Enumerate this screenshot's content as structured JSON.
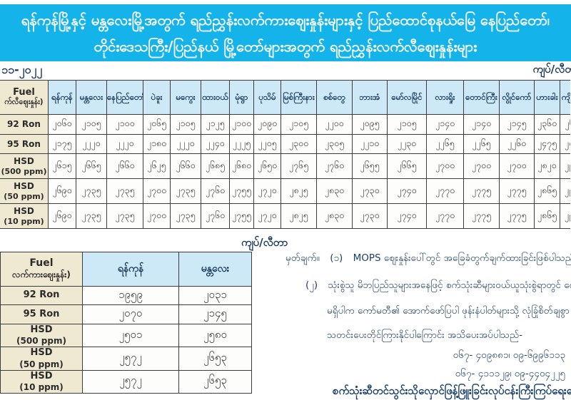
{
  "banner": {
    "line1": "ရန်ကုန်မြို့နှင့် မန္တလေးမြို့အတွက် ရည်ညွှန်းလက်ကားဈေးနှုန်းများနှင့် ပြည်ထောင်စုနယ်မြေ နေပြည်တော်၊",
    "line2": "တိုင်းဒေသကြီး/ပြည်နယ် မြို့တော်များအတွက် ရည်ညွှန်းလက်လီဈေးနှုန်းများ"
  },
  "meta": {
    "date": "၁၁-၂၀၂၂",
    "unit": "ကျပ်/လီတာ"
  },
  "retail_table": {
    "header": {
      "fuel_line1": "Fuel",
      "fuel_line2": "က်လီဈေးနှုန်း)"
    },
    "columns": [
      "ရန်ကုန်",
      "မန္တလေး",
      "နေပြည်တော်",
      "ပဲခူး",
      "မကွေး",
      "ထားဝယ်",
      "မုံရွာ",
      "ပုသိမ်",
      "မြစ်ကြီးနား",
      "စစ်တွေ",
      "ဘားအံ",
      "မော်လမြိုင်",
      "လားရှိုး",
      "တောင်ကြီး",
      "လွိုင်ကော်",
      "ဟားခါး",
      "ကျိုင်းတုံ"
    ],
    "rows": [
      {
        "label": "92 Ron",
        "sub": "",
        "values": [
          "၂၀၆၀",
          "၂၁၀၅",
          "၂၁၀၀",
          "၂၀၆၅",
          "၂၁၀၅",
          "၂၁၂၅",
          "၂၁၀၀",
          "၂၀၉၀",
          "၂၁၀၅",
          "၂၂၀၀",
          "၂၀၉၅",
          "၂၁၀၅",
          "၂၁၄၀",
          "၂၁၄၀",
          "၂၁၄၅",
          "၂၃၆၀",
          "၂၆၂၀"
        ]
      },
      {
        "label": "95 Ron",
        "sub": "",
        "values": [
          "၂၁၇၅",
          "၂၂၂၀",
          "၂၂၂၀",
          "၂၁၈၀",
          "၂၂၂၀",
          "၂၂၄၀",
          "၂၂၂၅",
          "၂၂၀၅",
          "၂၃၀၀",
          "၂၃၀၅",
          "၂၂၁၀",
          "၂၂၃၀",
          "၂၂၆၅",
          "၂၂၆၅",
          "၂၂၆၀",
          "၂၄၇၅",
          "၂၄၀၀"
        ]
      },
      {
        "label": "HSD",
        "sub": "(500 ppm)",
        "values": [
          "၂၆၁၅",
          "၂၆၆၅",
          "၂၆၆၀",
          "၂၆၂၅",
          "၂၆၆၀",
          "၂၆၈၅",
          "၂၆၈၀",
          "၂၆၅၀",
          "၂၇၆၅",
          "၂၇၆၀",
          "၂၆၅၅",
          "၂၆၆၅",
          "၂၇၀၀",
          "၂၇၀၀",
          "၂၇၀၀",
          "၂၈၂၀",
          "၂၉၆၅"
        ]
      },
      {
        "label": "HSD",
        "sub": "(50 ppm)",
        "values": [
          "၂၆၉၀",
          "၂၇၃၅",
          "၂၇၃၅",
          "၂၇၀၀",
          "၂၇၃၅",
          "၂၇၆၀",
          "၂၇၅၅",
          "၂၇၂၀",
          "၂၈၂၅",
          "၂၈၃၀",
          "၂၇၃၀",
          "၂၇၄၀",
          "၂၇၇၀",
          "၂၇၇၅",
          "၂၇၇၅",
          "၂၈၆၅",
          "၂၉၆၅"
        ]
      },
      {
        "label": "HSD",
        "sub": "(10 ppm)",
        "values": [
          "၂၆၉၀",
          "၂၇၃၅",
          "၂၇၃၅",
          "၂၇၀၀",
          "၂၇၃၅",
          "၂၇၆၀",
          "၂၇၅၅",
          "၂၇၂၀",
          "၂၈၂၅",
          "၂၈၃၀",
          "၂၇၃၀",
          "၂၇၄၀",
          "၂၇၇၀",
          "၂၇၇၅",
          "၂၇၇၅",
          "၂၈၆၅",
          "၂၉၆၅"
        ]
      }
    ]
  },
  "wholesale_table": {
    "unit": "ကျပ်/လီတာ",
    "header": {
      "fuel_line1": "Fuel",
      "fuel_line2": "လက်ကားဈေးနှုန်း)"
    },
    "columns": [
      "ရန်ကုန်",
      "မန္တလေး"
    ],
    "rows": [
      {
        "label": "92 Ron",
        "sub": "",
        "values": [
          "၁၉၅၉",
          "၂၀၃၁"
        ]
      },
      {
        "label": "95 Ron",
        "sub": "",
        "values": [
          "၂၀၇၀",
          "၂၁၄၅"
        ]
      },
      {
        "label": "HSD",
        "sub": "(500 ppm)",
        "values": [
          "၂၅၀၁",
          "၂၅၈၀"
        ]
      },
      {
        "label": "HSD",
        "sub": "(50 ppm)",
        "values": [
          "၂၅၇၂",
          "၂၆၅၃"
        ]
      },
      {
        "label": "HSD",
        "sub": "(10 ppm)",
        "values": [
          "၂၅၇၂",
          "၂၆၅၃"
        ]
      }
    ]
  },
  "notes": {
    "heading": "မှတ်ချက်။",
    "item1_no": "(၁)",
    "item1_text": "MOPS ဈေးနှုန်းပေါ်တွင် အခြေခံတွက်ချက်ထားခြင်းဖြစ်ပါသည်။",
    "item2_no": "(၂)",
    "item2_line1": "သုံးစွဲသူ မိဘပြည်သူများအနေဖြင့် စက်သုံးဆီများဝယ်ယူသုံးစွဲရာတွင် ကျေနပ်မှု",
    "item2_line2": "မရှိပါက ကော်မတီ၏ အောက်ဖော်ပြပါ ဖုန်းနံပါတ်များသို့ လုံခြုံစိတ်ချစွာ",
    "item2_line3": "သတင်းပေးတိုင်ကြားနိုင်ပါကြောင်း အသိပေးအပ်ပါသည်-",
    "phone_line1": "၀၆၇- ၄၀၉၈၈၁၊ ဝ၉-၆၉၉၆၁၁၃",
    "phone_line2": "၀၆၇- ၄၁၁၁၂၉၊ ဝ၉-၄၄၀၄၂၂၅",
    "committee": "စက်သုံးဆီတင်သွင်းသိုလှောင်ဖြန့်ဖြူးခြင်းလုပ်ငန်းကြီးကြပ်ရေးကော်မတီ"
  },
  "colors": {
    "banner_bg": "#14b4ea",
    "header_blue": "#cde9f7",
    "label_beige": "#efe9d1",
    "border": "#3c3c3c",
    "navy": "#17365a",
    "notes_blue": "#1c3f66"
  }
}
